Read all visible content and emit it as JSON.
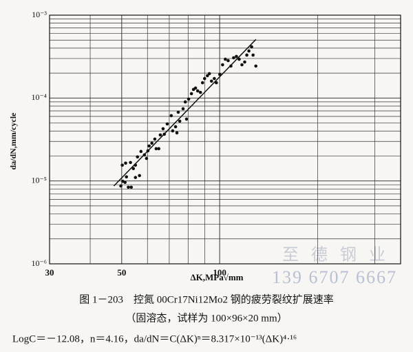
{
  "chart_data": {
    "type": "scatter",
    "xscale": "log",
    "yscale": "log",
    "grid": true,
    "color": "#111111",
    "xlabel": "ΔK,MPa√mm",
    "ylabel": "da/dN,mm/cycle",
    "xlim": [
      30,
      360
    ],
    "ylim": [
      1e-06,
      0.001
    ],
    "xticks": [
      30,
      50,
      100
    ],
    "yticks": [
      {
        "value": 1e-06,
        "label": "10⁻⁶"
      },
      {
        "value": 1e-05,
        "label": "10⁻⁵"
      },
      {
        "value": 0.0001,
        "label": "10⁻⁴"
      },
      {
        "value": 0.001,
        "label": "10⁻³"
      }
    ],
    "x_minor_ticks": [
      40,
      60,
      70,
      80,
      90,
      200,
      300
    ],
    "y_minor_ticks": [
      2e-06,
      3e-06,
      4e-06,
      5e-06,
      6e-06,
      7e-06,
      8e-06,
      9e-06,
      2e-05,
      3e-05,
      4e-05,
      5e-05,
      6e-05,
      7e-05,
      8e-05,
      9e-05,
      0.0002,
      0.0003,
      0.0004,
      0.0005,
      0.0006,
      0.0007,
      0.0008,
      0.0009
    ],
    "x": [
      49.7,
      50.4,
      51.2,
      51.7,
      52.4,
      53.5,
      50.2,
      51.4,
      53.2,
      54.3,
      55.1,
      55.9,
      55.1,
      56.7,
      57.3,
      58.7,
      59.6,
      60.2,
      60.7,
      61.9,
      63.2,
      63.8,
      65.0,
      65.7,
      67.0,
      67.6,
      69.0,
      71.0,
      71.7,
      73.2,
      73.9,
      74.6,
      75.4,
      77.2,
      78.4,
      79.1,
      80.3,
      81.9,
      83.1,
      84.3,
      85.6,
      87.3,
      88.6,
      89.9,
      91.7,
      93.0,
      94.4,
      96.3,
      97.7,
      100.1,
      102.1,
      104.1,
      106.2,
      108.3,
      110.4,
      112.6,
      114.8,
      117.1,
      119.4,
      121.2,
      123.0,
      125.4,
      126.7,
      129.2
    ],
    "values": [
      8.7e-06,
      9.9e-06,
      9.6e-06,
      1.12e-05,
      8.4e-06,
      8.4e-06,
      1.55e-05,
      1.64e-05,
      1.67e-05,
      1.41e-05,
      1.55e-05,
      1.95e-05,
      1.1e-05,
      1.16e-05,
      2.27e-05,
      2.06e-05,
      1.87e-05,
      2.31e-05,
      2.64e-05,
      2.85e-05,
      3.2e-05,
      2.45e-05,
      2.45e-05,
      3.59e-05,
      4.26e-05,
      3.66e-05,
      4.87e-05,
      6.13e-05,
      4.02e-05,
      4.51e-05,
      3.8e-05,
      6.75e-05,
      5.26e-05,
      7.42e-05,
      8.98e-05,
      5.57e-05,
      9.7e-05,
      0.000113,
      0.000127,
      0.000132,
      0.000122,
      0.000117,
      0.000153,
      0.000172,
      0.000186,
      0.000197,
      0.00016,
      0.000172,
      0.000153,
      0.000193,
      0.000252,
      0.000294,
      0.000283,
      0.000243,
      0.000306,
      0.000318,
      0.000294,
      0.000252,
      0.000272,
      0.00033,
      0.00037,
      0.000415,
      0.00033,
      0.000243
    ],
    "fit": {
      "x": [
        47.3,
        129.3
      ],
      "values": [
        8.7e-06,
        0.00051
      ],
      "color": "#111111"
    },
    "caption": [
      "图 1－203　控氮 00Cr17Ni12Mo2 钢的疲劳裂纹扩展速率",
      "（固溶态，试样为 100×96×20 mm）",
      "LogC＝－12.08，n＝4.16，da/dN＝C(ΔK)ⁿ＝8.317×10⁻¹³(ΔK)⁴·¹⁶"
    ],
    "watermark": [
      "至 德 钢 业",
      "139 6707 6667"
    ]
  }
}
